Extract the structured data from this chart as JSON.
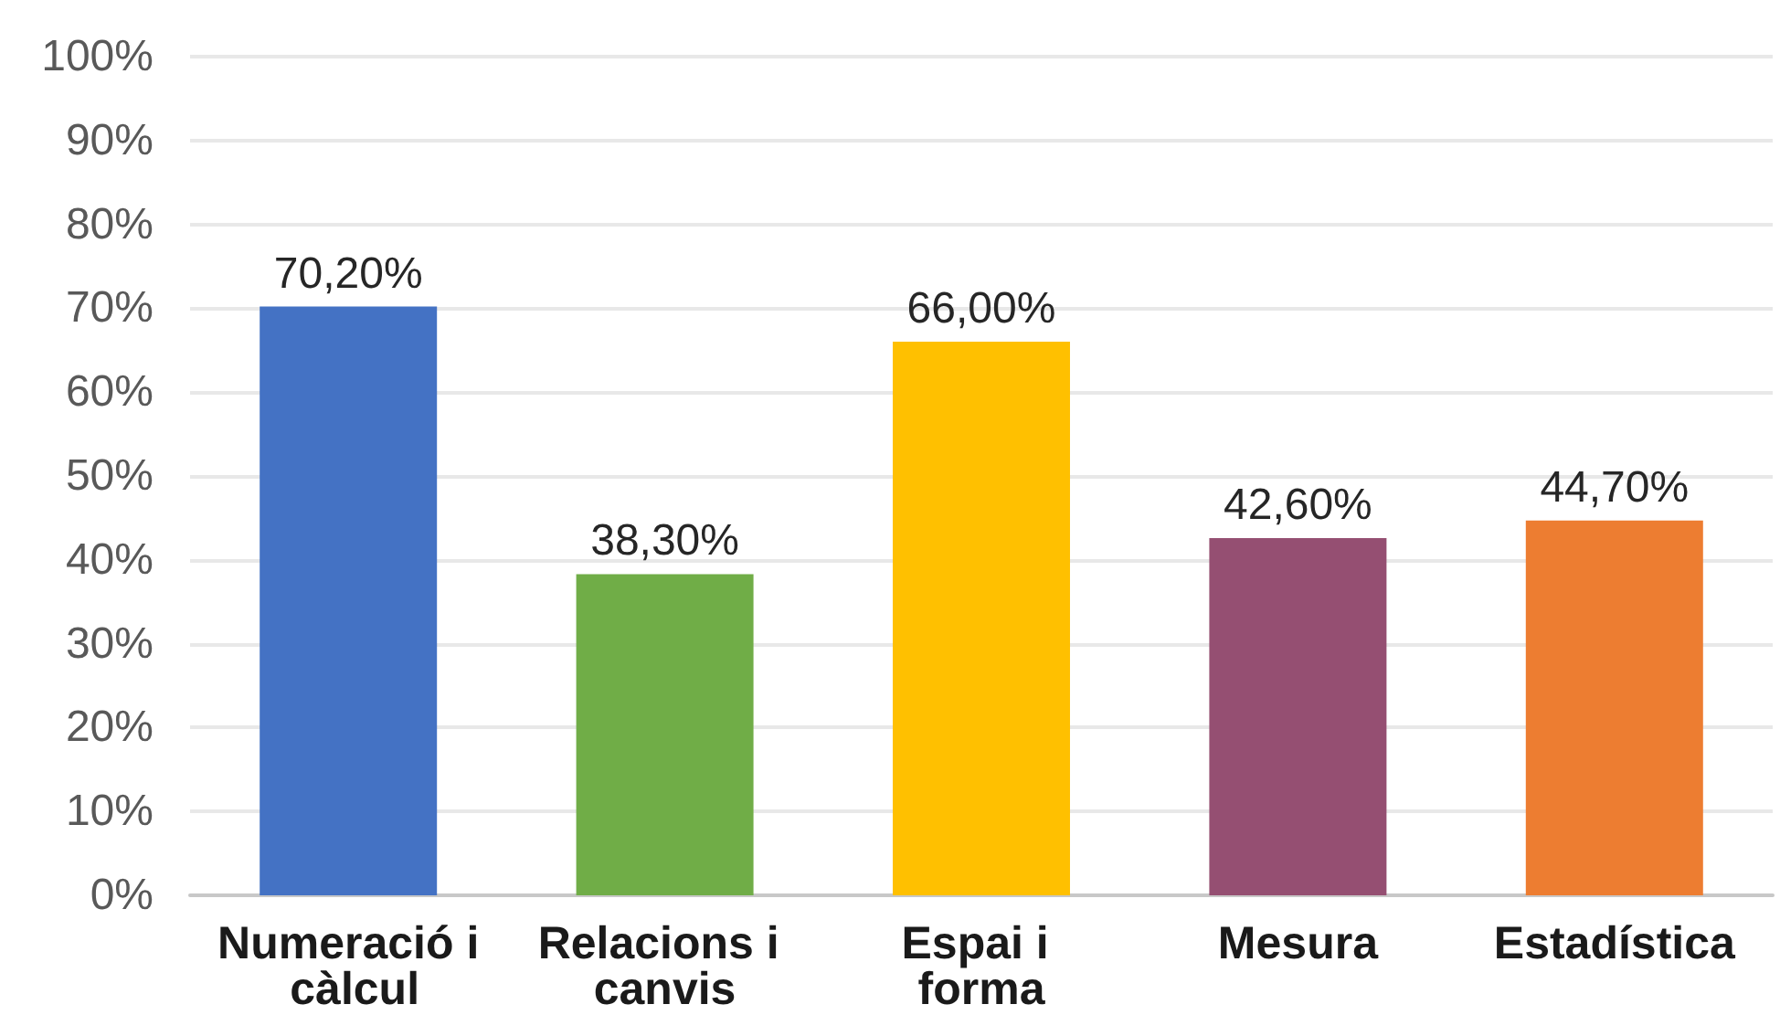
{
  "chart_data": {
    "type": "bar",
    "categories": [
      "Numeració i càlcul",
      "Relacions i canvis",
      "Espai i forma",
      "Mesura",
      "Estadística"
    ],
    "values": [
      70.2,
      38.3,
      66.0,
      42.6,
      44.7
    ],
    "colors": [
      "#4472c4",
      "#70ad47",
      "#ffc000",
      "#954f72",
      "#ed7d31"
    ],
    "value_labels": [
      "70,20%",
      "38,30%",
      "66,00%",
      "42,60%",
      "44,70%"
    ],
    "ylim": [
      0,
      100
    ],
    "yticks": [
      {
        "value": 0,
        "label": "0%"
      },
      {
        "value": 10,
        "label": "10%"
      },
      {
        "value": 20,
        "label": "20%"
      },
      {
        "value": 30,
        "label": "30%"
      },
      {
        "value": 40,
        "label": "40%"
      },
      {
        "value": 50,
        "label": "50%"
      },
      {
        "value": 60,
        "label": "60%"
      },
      {
        "value": 70,
        "label": "70%"
      },
      {
        "value": 80,
        "label": "80%"
      },
      {
        "value": 90,
        "label": "90%"
      },
      {
        "value": 100,
        "label": "100%"
      }
    ],
    "grid": "y"
  }
}
